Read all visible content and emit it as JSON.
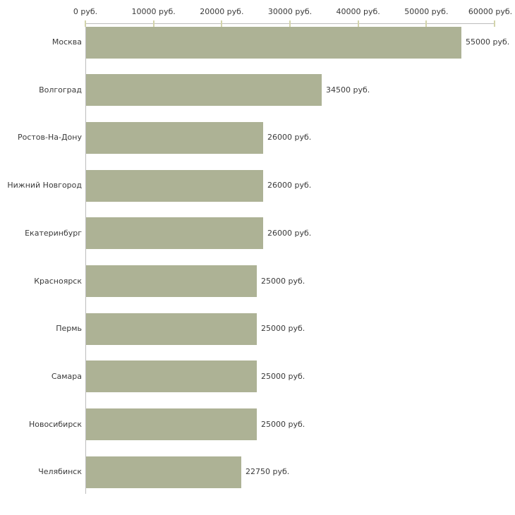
{
  "chart_data": {
    "type": "bar",
    "orientation": "horizontal",
    "title": "",
    "xlabel": "",
    "ylabel": "",
    "unit": "руб.",
    "categories": [
      "Москва",
      "Волгоград",
      "Ростов-На-Дону",
      "Нижний Новгород",
      "Екатеринбург",
      "Красноярск",
      "Пермь",
      "Самара",
      "Новосибирск",
      "Челябинск"
    ],
    "values": [
      55000,
      34500,
      26000,
      26000,
      26000,
      25000,
      25000,
      25000,
      25000,
      22750
    ],
    "value_labels": [
      "55000 руб.",
      "34500 руб.",
      "26000 руб.",
      "26000 руб.",
      "26000 руб.",
      "25000 руб.",
      "25000 руб.",
      "25000 руб.",
      "25000 руб.",
      "22750 руб."
    ],
    "x_ticks": [
      0,
      10000,
      20000,
      30000,
      40000,
      50000,
      60000
    ],
    "x_tick_labels": [
      "0 руб.",
      "10000 руб.",
      "20000 руб.",
      "30000 руб.",
      "40000 руб.",
      "50000 руб.",
      "60000 руб."
    ],
    "xlim": [
      0,
      60000
    ],
    "grid": false,
    "legend": null,
    "colors": {
      "bar": "#adb295",
      "axis": "#bdbdbd",
      "tick": "#d3d4ab",
      "text": "#3a3a3a",
      "background": "#ffffff"
    }
  }
}
